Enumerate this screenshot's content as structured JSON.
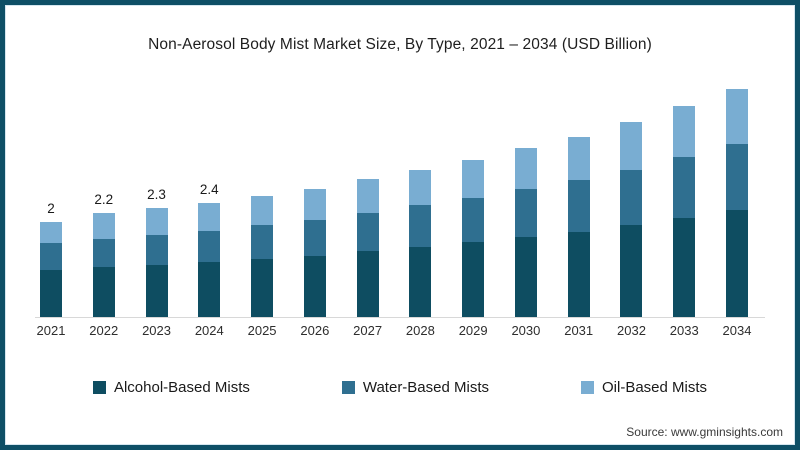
{
  "page": {
    "frame_color": "#0E4F66",
    "background": "#ffffff",
    "axis_line_color": "#d8d8d8"
  },
  "title": "Non-Aerosol Body Mist Market Size, By Type, 2021 – 2034 (USD Billion)",
  "source": "Source: www.gminsights.com",
  "legend": [
    {
      "label": "Alcohol-Based Mists",
      "color": "#0E4D61"
    },
    {
      "label": "Water-Based Mists",
      "color": "#2F6F90"
    },
    {
      "label": "Oil-Based Mists",
      "color": "#79ADD2"
    }
  ],
  "chart_data": {
    "type": "bar",
    "stacked": true,
    "title": "Non-Aerosol Body Mist Market Size, By Type, 2021 – 2034 (USD Billion)",
    "unit": "USD Billion",
    "xlabel": "",
    "ylabel": "",
    "ylim": [
      0,
      5
    ],
    "grid": false,
    "legend_position": "bottom",
    "categories": [
      "2021",
      "2022",
      "2023",
      "2024",
      "2025",
      "2026",
      "2027",
      "2028",
      "2029",
      "2030",
      "2031",
      "2032",
      "2033",
      "2034"
    ],
    "series": [
      {
        "name": "Alcohol-Based Mists",
        "color": "#0E4D61",
        "values": [
          1.0,
          1.05,
          1.1,
          1.15,
          1.22,
          1.29,
          1.38,
          1.47,
          1.57,
          1.68,
          1.79,
          1.93,
          2.08,
          2.25
        ]
      },
      {
        "name": "Water-Based Mists",
        "color": "#2F6F90",
        "values": [
          0.55,
          0.6,
          0.63,
          0.67,
          0.71,
          0.76,
          0.82,
          0.88,
          0.94,
          1.02,
          1.09,
          1.17,
          1.28,
          1.4
        ]
      },
      {
        "name": "Oil-Based Mists",
        "color": "#79ADD2",
        "values": [
          0.45,
          0.55,
          0.57,
          0.58,
          0.62,
          0.65,
          0.7,
          0.75,
          0.79,
          0.85,
          0.92,
          1.0,
          1.09,
          1.15
        ]
      }
    ],
    "totals": [
      2.0,
      2.2,
      2.3,
      2.4,
      2.55,
      2.7,
      2.9,
      3.1,
      3.3,
      3.55,
      3.8,
      4.1,
      4.45,
      4.8
    ],
    "bar_labels": [
      "2",
      "2.2",
      "2.3",
      "2.4",
      "",
      "",
      "",
      "",
      "",
      "",
      "",
      "",
      "",
      ""
    ]
  }
}
